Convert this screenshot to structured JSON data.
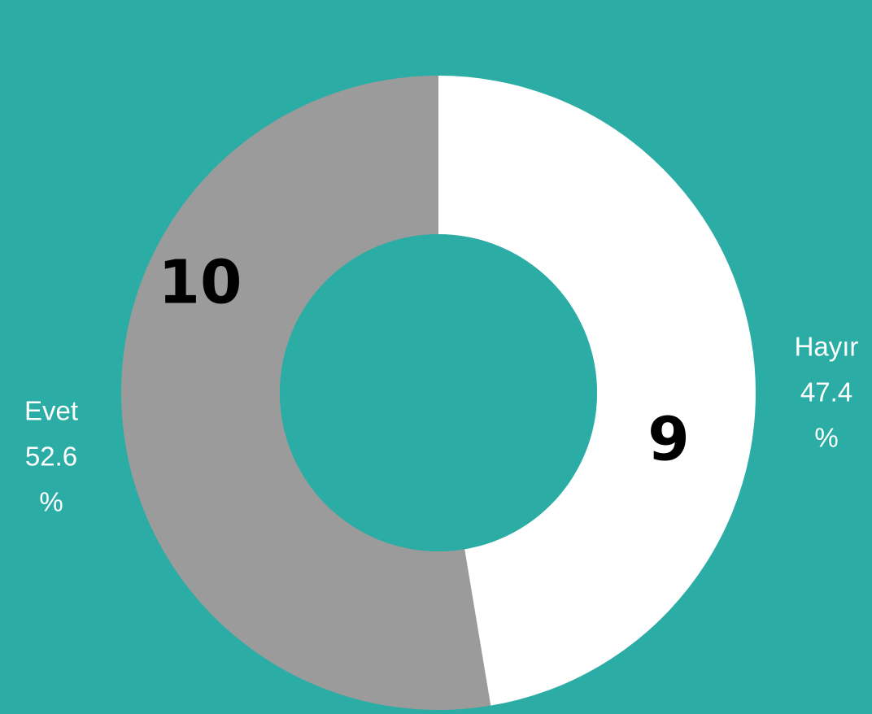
{
  "colors": {
    "background": "#2BACA5",
    "hole": "#2BACA5",
    "value_label": "#000000",
    "outside_label": "#FFFFFF"
  },
  "chart_data": {
    "type": "pie",
    "variant": "donut",
    "slices": [
      {
        "category": "Hayır",
        "value": 9,
        "percent_lines": [
          "47.4",
          "%"
        ],
        "color": "#FFFFFF"
      },
      {
        "category": "Evet",
        "value": 10,
        "percent_lines": [
          "52.6",
          "%"
        ],
        "color": "#9B9B9B"
      }
    ],
    "start_angle": "12 o'clock",
    "direction": "clockwise",
    "legend": "none"
  }
}
